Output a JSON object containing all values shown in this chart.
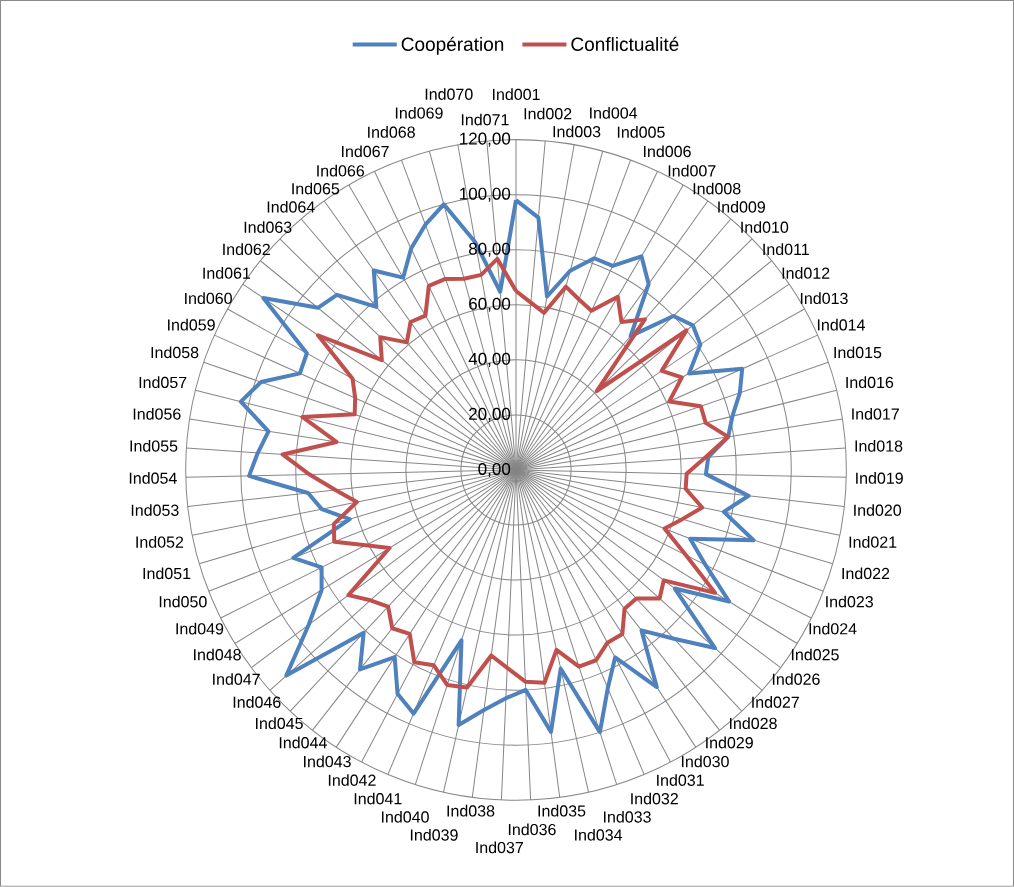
{
  "chart_data": {
    "type": "radar",
    "categories": [
      "Ind001",
      "Ind002",
      "Ind003",
      "Ind004",
      "Ind005",
      "Ind006",
      "Ind007",
      "Ind008",
      "Ind009",
      "Ind010",
      "Ind011",
      "Ind012",
      "Ind013",
      "Ind014",
      "Ind015",
      "Ind016",
      "Ind017",
      "Ind018",
      "Ind019",
      "Ind020",
      "Ind021",
      "Ind022",
      "Ind023",
      "Ind024",
      "Ind025",
      "Ind026",
      "Ind027",
      "Ind028",
      "Ind029",
      "Ind030",
      "Ind031",
      "Ind032",
      "Ind033",
      "Ind034",
      "Ind035",
      "Ind036",
      "Ind037",
      "Ind038",
      "Ind039",
      "Ind040",
      "Ind041",
      "Ind042",
      "Ind043",
      "Ind044",
      "Ind045",
      "Ind046",
      "Ind047",
      "Ind048",
      "Ind049",
      "Ind050",
      "Ind051",
      "Ind052",
      "Ind053",
      "Ind054",
      "Ind055",
      "Ind056",
      "Ind057",
      "Ind058",
      "Ind059",
      "Ind060",
      "Ind061",
      "Ind062",
      "Ind063",
      "Ind064",
      "Ind065",
      "Ind066",
      "Ind067",
      "Ind068",
      "Ind069",
      "Ind070",
      "Ind071"
    ],
    "series": [
      {
        "name": "Coopération",
        "color": "#4f81bd",
        "values": [
          98,
          92,
          64,
          75,
          82,
          82,
          90,
          83,
          64,
          80,
          83,
          81,
          72,
          90,
          86,
          81,
          78,
          70,
          69,
          85,
          77,
          90,
          68,
          77,
          91,
          72,
          97,
          84,
          74,
          94,
          77,
          86,
          100,
          74,
          96,
          80,
          83,
          88,
          95,
          65,
          96,
          92,
          81,
          92,
          81,
          112,
          94,
          83,
          79,
          87,
          63,
          72,
          76,
          97,
          94,
          91,
          103,
          98,
          86,
          87,
          111,
          93,
          91,
          78,
          89,
          81,
          89,
          95,
          100,
          84,
          65
        ]
      },
      {
        "name": "Conflictualité",
        "color": "#c0504d",
        "values": [
          65,
          61,
          58,
          69,
          66,
          64,
          73,
          66,
          72,
          41,
          80,
          64,
          69,
          61,
          71,
          71,
          78,
          69,
          62,
          62,
          69,
          63,
          58,
          69,
          85,
          67,
          70,
          64,
          64,
          71,
          71,
          75,
          75,
          67,
          78,
          77,
          72,
          68,
          81,
          82,
          77,
          79,
          71,
          73,
          68,
          71,
          76,
          54,
          61,
          71,
          69,
          59,
          66,
          75,
          85,
          66,
          80,
          62,
          64,
          68,
          87,
          63,
          69,
          61,
          66,
          65,
          74,
          74,
          72,
          72,
          77
        ]
      }
    ],
    "ylim": [
      0,
      120
    ],
    "yticks": [
      {
        "value": 0,
        "label": "0,00"
      },
      {
        "value": 20,
        "label": "20,00"
      },
      {
        "value": 40,
        "label": "40,00"
      },
      {
        "value": 60,
        "label": "60,00"
      },
      {
        "value": 80,
        "label": "80,00"
      },
      {
        "value": 100,
        "label": "100,00"
      },
      {
        "value": 120,
        "label": "120,00"
      }
    ],
    "grid": true,
    "legend": "top"
  }
}
